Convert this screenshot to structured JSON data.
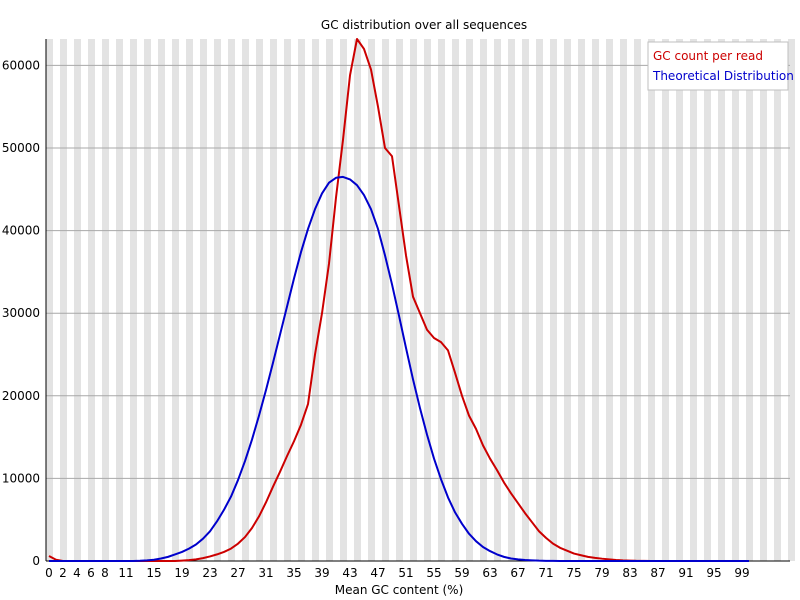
{
  "chart_data": {
    "type": "line",
    "title": "GC distribution over all sequences",
    "xlabel": "Mean GC content (%)",
    "ylabel": "",
    "xlim": [
      0,
      100
    ],
    "ylim": [
      0,
      63200
    ],
    "y_ticks": [
      0,
      10000,
      20000,
      30000,
      40000,
      50000,
      60000
    ],
    "x_ticks": [
      "0",
      "2",
      "4",
      "6",
      "8",
      "11",
      "15",
      "19",
      "23",
      "27",
      "31",
      "35",
      "39",
      "43",
      "47",
      "51",
      "55",
      "59",
      "63",
      "67",
      "71",
      "75",
      "79",
      "83",
      "87",
      "91",
      "95",
      "99"
    ],
    "grid": true,
    "legend_position": "top-right",
    "x": [
      0,
      1,
      2,
      3,
      4,
      5,
      6,
      7,
      8,
      9,
      10,
      11,
      12,
      13,
      14,
      15,
      16,
      17,
      18,
      19,
      20,
      21,
      22,
      23,
      24,
      25,
      26,
      27,
      28,
      29,
      30,
      31,
      32,
      33,
      34,
      35,
      36,
      37,
      38,
      39,
      40,
      41,
      42,
      43,
      44,
      45,
      46,
      47,
      48,
      49,
      50,
      51,
      52,
      53,
      54,
      55,
      56,
      57,
      58,
      59,
      60,
      61,
      62,
      63,
      64,
      65,
      66,
      67,
      68,
      69,
      70,
      71,
      72,
      73,
      74,
      75,
      76,
      77,
      78,
      79,
      80,
      81,
      82,
      83,
      84,
      85,
      86,
      87,
      88,
      89,
      90,
      91,
      92,
      93,
      94,
      95,
      96,
      97,
      98,
      99,
      100
    ],
    "series": [
      {
        "name": "GC count per read",
        "color": "#cc0000",
        "values": [
          600,
          150,
          0,
          0,
          0,
          0,
          0,
          0,
          0,
          0,
          0,
          0,
          0,
          0,
          0,
          0,
          0,
          0,
          0,
          50,
          100,
          200,
          350,
          550,
          800,
          1100,
          1500,
          2100,
          2900,
          4000,
          5400,
          7100,
          9000,
          10800,
          12700,
          14500,
          16500,
          19000,
          25000,
          30000,
          36000,
          44000,
          51000,
          58800,
          63200,
          62000,
          59500,
          55000,
          50000,
          49000,
          43000,
          37000,
          32000,
          30000,
          28000,
          27000,
          26500,
          25500,
          22800,
          20000,
          17600,
          16000,
          14000,
          12400,
          11000,
          9500,
          8200,
          7000,
          5800,
          4700,
          3600,
          2800,
          2100,
          1600,
          1250,
          900,
          700,
          500,
          380,
          280,
          200,
          120,
          70,
          40,
          20,
          10,
          0,
          0,
          0,
          0,
          0,
          0,
          0,
          0,
          0,
          0,
          0,
          0,
          0,
          0,
          0
        ],
        "legend_label": "GC count per read"
      },
      {
        "name": "Theoretical Distribution",
        "color": "#0000cc",
        "values": [
          0,
          0,
          0,
          0,
          0,
          0,
          0,
          0,
          0,
          0,
          0,
          0,
          0,
          30,
          80,
          150,
          300,
          500,
          800,
          1100,
          1500,
          2000,
          2700,
          3600,
          4800,
          6200,
          7800,
          9800,
          12100,
          14700,
          17600,
          20700,
          24000,
          27400,
          30800,
          34200,
          37400,
          40200,
          42600,
          44500,
          45800,
          46400,
          46500,
          46200,
          45500,
          44300,
          42600,
          40200,
          37000,
          33500,
          29700,
          25800,
          22000,
          18500,
          15300,
          12400,
          9900,
          7700,
          5900,
          4500,
          3300,
          2400,
          1700,
          1200,
          800,
          500,
          300,
          200,
          120,
          80,
          40,
          20,
          10,
          0,
          0,
          0,
          0,
          0,
          0,
          0,
          0,
          0,
          0,
          0,
          0,
          0,
          0,
          0,
          0,
          0,
          0,
          0,
          0,
          0,
          0,
          0,
          0,
          0,
          0,
          0,
          0
        ],
        "legend_label": "Theoretical Distribution"
      }
    ]
  }
}
